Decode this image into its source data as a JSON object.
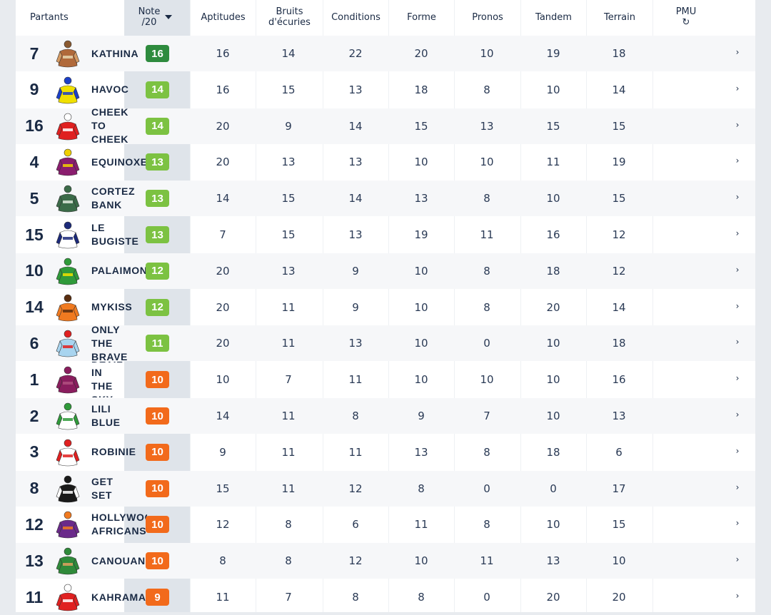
{
  "header": {
    "partants": "Partants",
    "note_line1": "Note",
    "note_line2": "/20",
    "aptitudes": "Aptitudes",
    "bruits_line1": "Bruits",
    "bruits_line2": "d'écuries",
    "conditions": "Conditions",
    "forme": "Forme",
    "pronos": "Pronos",
    "tandem": "Tandem",
    "terrain": "Terrain",
    "pmu": "PMU",
    "pmu_icon": "↻"
  },
  "colors": {
    "note_dark_green": "#2e8b3e",
    "note_green": "#7cc242",
    "note_orange": "#f26a1b"
  },
  "chevron": "›",
  "rows": [
    {
      "num": "7",
      "name": "KATHINA",
      "note": "16",
      "level": "dark",
      "jockey": {
        "body": "#b0693a",
        "sleeve": "#d59a62",
        "cap": "#8a5a30",
        "detail": "#e8d7b0"
      },
      "aptitudes": "16",
      "bruits": "14",
      "conditions": "22",
      "forme": "20",
      "pronos": "10",
      "tandem": "19",
      "terrain": "18"
    },
    {
      "num": "9",
      "name": "HAVOC",
      "note": "14",
      "level": "green",
      "jockey": {
        "body": "#f0e000",
        "sleeve": "#1b3fc8",
        "cap": "#1b3fc8",
        "detail": "#1b3fc8"
      },
      "aptitudes": "16",
      "bruits": "15",
      "conditions": "13",
      "forme": "18",
      "pronos": "8",
      "tandem": "10",
      "terrain": "14"
    },
    {
      "num": "16",
      "name": "CHEEK\nTO\nCHEEK",
      "note": "14",
      "level": "green",
      "jockey": {
        "body": "#e02020",
        "sleeve": "#e02020",
        "cap": "#ffffff",
        "detail": "#ffffff"
      },
      "aptitudes": "20",
      "bruits": "9",
      "conditions": "14",
      "forme": "15",
      "pronos": "13",
      "tandem": "15",
      "terrain": "15"
    },
    {
      "num": "4",
      "name": "EQUINOXE",
      "note": "13",
      "level": "green",
      "jockey": {
        "body": "#8a1d6e",
        "sleeve": "#8a1d6e",
        "cap": "#f0d000",
        "detail": "#f0d000"
      },
      "aptitudes": "20",
      "bruits": "13",
      "conditions": "13",
      "forme": "10",
      "pronos": "10",
      "tandem": "11",
      "terrain": "19"
    },
    {
      "num": "5",
      "name": "CORTEZ\nBANK",
      "note": "13",
      "level": "green",
      "jockey": {
        "body": "#3b6b48",
        "sleeve": "#3b6b48",
        "cap": "#3b6b48",
        "detail": "#dfe8dc"
      },
      "aptitudes": "14",
      "bruits": "15",
      "conditions": "14",
      "forme": "13",
      "pronos": "8",
      "tandem": "10",
      "terrain": "15"
    },
    {
      "num": "15",
      "name": "LE\nBUGISTE",
      "note": "13",
      "level": "green",
      "jockey": {
        "body": "#ffffff",
        "sleeve": "#1c2a7a",
        "cap": "#1c2a7a",
        "detail": "#1c2a7a"
      },
      "aptitudes": "7",
      "bruits": "15",
      "conditions": "13",
      "forme": "19",
      "pronos": "11",
      "tandem": "16",
      "terrain": "12"
    },
    {
      "num": "10",
      "name": "PALAIMON",
      "note": "12",
      "level": "green",
      "jockey": {
        "body": "#2f9a3a",
        "sleeve": "#2f9a3a",
        "cap": "#2f9a3a",
        "detail": "#f0e000"
      },
      "aptitudes": "20",
      "bruits": "13",
      "conditions": "9",
      "forme": "10",
      "pronos": "8",
      "tandem": "18",
      "terrain": "12"
    },
    {
      "num": "14",
      "name": "MYKISS",
      "note": "12",
      "level": "green",
      "jockey": {
        "body": "#f07a20",
        "sleeve": "#f07a20",
        "cap": "#5a2e10",
        "detail": "#5a2e10"
      },
      "aptitudes": "20",
      "bruits": "11",
      "conditions": "9",
      "forme": "10",
      "pronos": "8",
      "tandem": "20",
      "terrain": "14"
    },
    {
      "num": "6",
      "name": "ONLY\nTHE\nBRAVE",
      "note": "11",
      "level": "green",
      "jockey": {
        "body": "#a8d4ef",
        "sleeve": "#a8d4ef",
        "cap": "#e02020",
        "detail": "#e02020"
      },
      "aptitudes": "20",
      "bruits": "11",
      "conditions": "13",
      "forme": "10",
      "pronos": "0",
      "tandem": "10",
      "terrain": "18"
    },
    {
      "num": "1",
      "name": "DEVIL\nIN\nTHE\nSKY",
      "note": "10",
      "level": "orange",
      "jockey": {
        "body": "#8a1d5e",
        "sleeve": "#8a1d5e",
        "cap": "#8a1d5e",
        "detail": "#b05080"
      },
      "aptitudes": "10",
      "bruits": "7",
      "conditions": "11",
      "forme": "10",
      "pronos": "10",
      "tandem": "10",
      "terrain": "16"
    },
    {
      "num": "2",
      "name": "LILI\nBLUE",
      "note": "10",
      "level": "orange",
      "jockey": {
        "body": "#ffffff",
        "sleeve": "#2f9a3a",
        "cap": "#2f9a3a",
        "detail": "#2f9a3a"
      },
      "aptitudes": "14",
      "bruits": "11",
      "conditions": "8",
      "forme": "9",
      "pronos": "7",
      "tandem": "10",
      "terrain": "13"
    },
    {
      "num": "3",
      "name": "ROBINIE",
      "note": "10",
      "level": "orange",
      "jockey": {
        "body": "#ffffff",
        "sleeve": "#e02020",
        "cap": "#e02020",
        "detail": "#e02020"
      },
      "aptitudes": "9",
      "bruits": "11",
      "conditions": "11",
      "forme": "13",
      "pronos": "8",
      "tandem": "18",
      "terrain": "6"
    },
    {
      "num": "8",
      "name": "GET\nSET",
      "note": "10",
      "level": "orange",
      "jockey": {
        "body": "#1a1a1a",
        "sleeve": "#ffffff",
        "cap": "#1a1a1a",
        "detail": "#ffffff"
      },
      "aptitudes": "15",
      "bruits": "11",
      "conditions": "12",
      "forme": "8",
      "pronos": "0",
      "tandem": "0",
      "terrain": "17"
    },
    {
      "num": "12",
      "name": "HOLLYWOOD\nAFRICANS",
      "note": "10",
      "level": "orange",
      "jockey": {
        "body": "#6a2a8a",
        "sleeve": "#6a2a8a",
        "cap": "#f07a20",
        "detail": "#f07a20"
      },
      "aptitudes": "12",
      "bruits": "8",
      "conditions": "6",
      "forme": "11",
      "pronos": "8",
      "tandem": "10",
      "terrain": "15"
    },
    {
      "num": "13",
      "name": "CANOUAN",
      "note": "10",
      "level": "orange",
      "jockey": {
        "body": "#2f8a3a",
        "sleeve": "#2f8a3a",
        "cap": "#2f8a3a",
        "detail": "#e0a060"
      },
      "aptitudes": "8",
      "bruits": "8",
      "conditions": "12",
      "forme": "10",
      "pronos": "11",
      "tandem": "13",
      "terrain": "10"
    },
    {
      "num": "11",
      "name": "KAHRAMAN",
      "note": "9",
      "level": "orange",
      "jockey": {
        "body": "#e02020",
        "sleeve": "#e02020",
        "cap": "#ffffff",
        "detail": "#ffffff"
      },
      "aptitudes": "11",
      "bruits": "7",
      "conditions": "8",
      "forme": "8",
      "pronos": "0",
      "tandem": "20",
      "terrain": "20"
    }
  ]
}
